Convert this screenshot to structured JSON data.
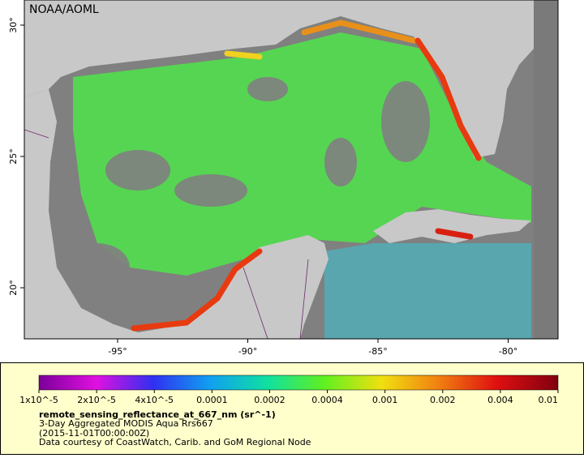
{
  "map": {
    "credit": "NOAA/AOML",
    "lat_labels": [
      "30°",
      "25°",
      "20°"
    ],
    "lon_labels": [
      "-95°",
      "-90°",
      "-85°",
      "-80°"
    ]
  },
  "colorbar": {
    "labels": [
      "1x10^-5",
      "2x10^-5",
      "4x10^-5",
      "0.0001",
      "0.0002",
      "0.0004",
      "0.001",
      "0.002",
      "0.004",
      "0.01"
    ]
  },
  "caption": {
    "variable": "remote_sensing_reflectance_at_667_nm (sr^-1)",
    "dataset": "3-Day Aggregated MODIS Aqua Rrs667",
    "time": "(2015-11-01T00:00:00Z)",
    "courtesy": "Data courtesy of CoastWatch, Carib. and GoM Regional Node"
  }
}
